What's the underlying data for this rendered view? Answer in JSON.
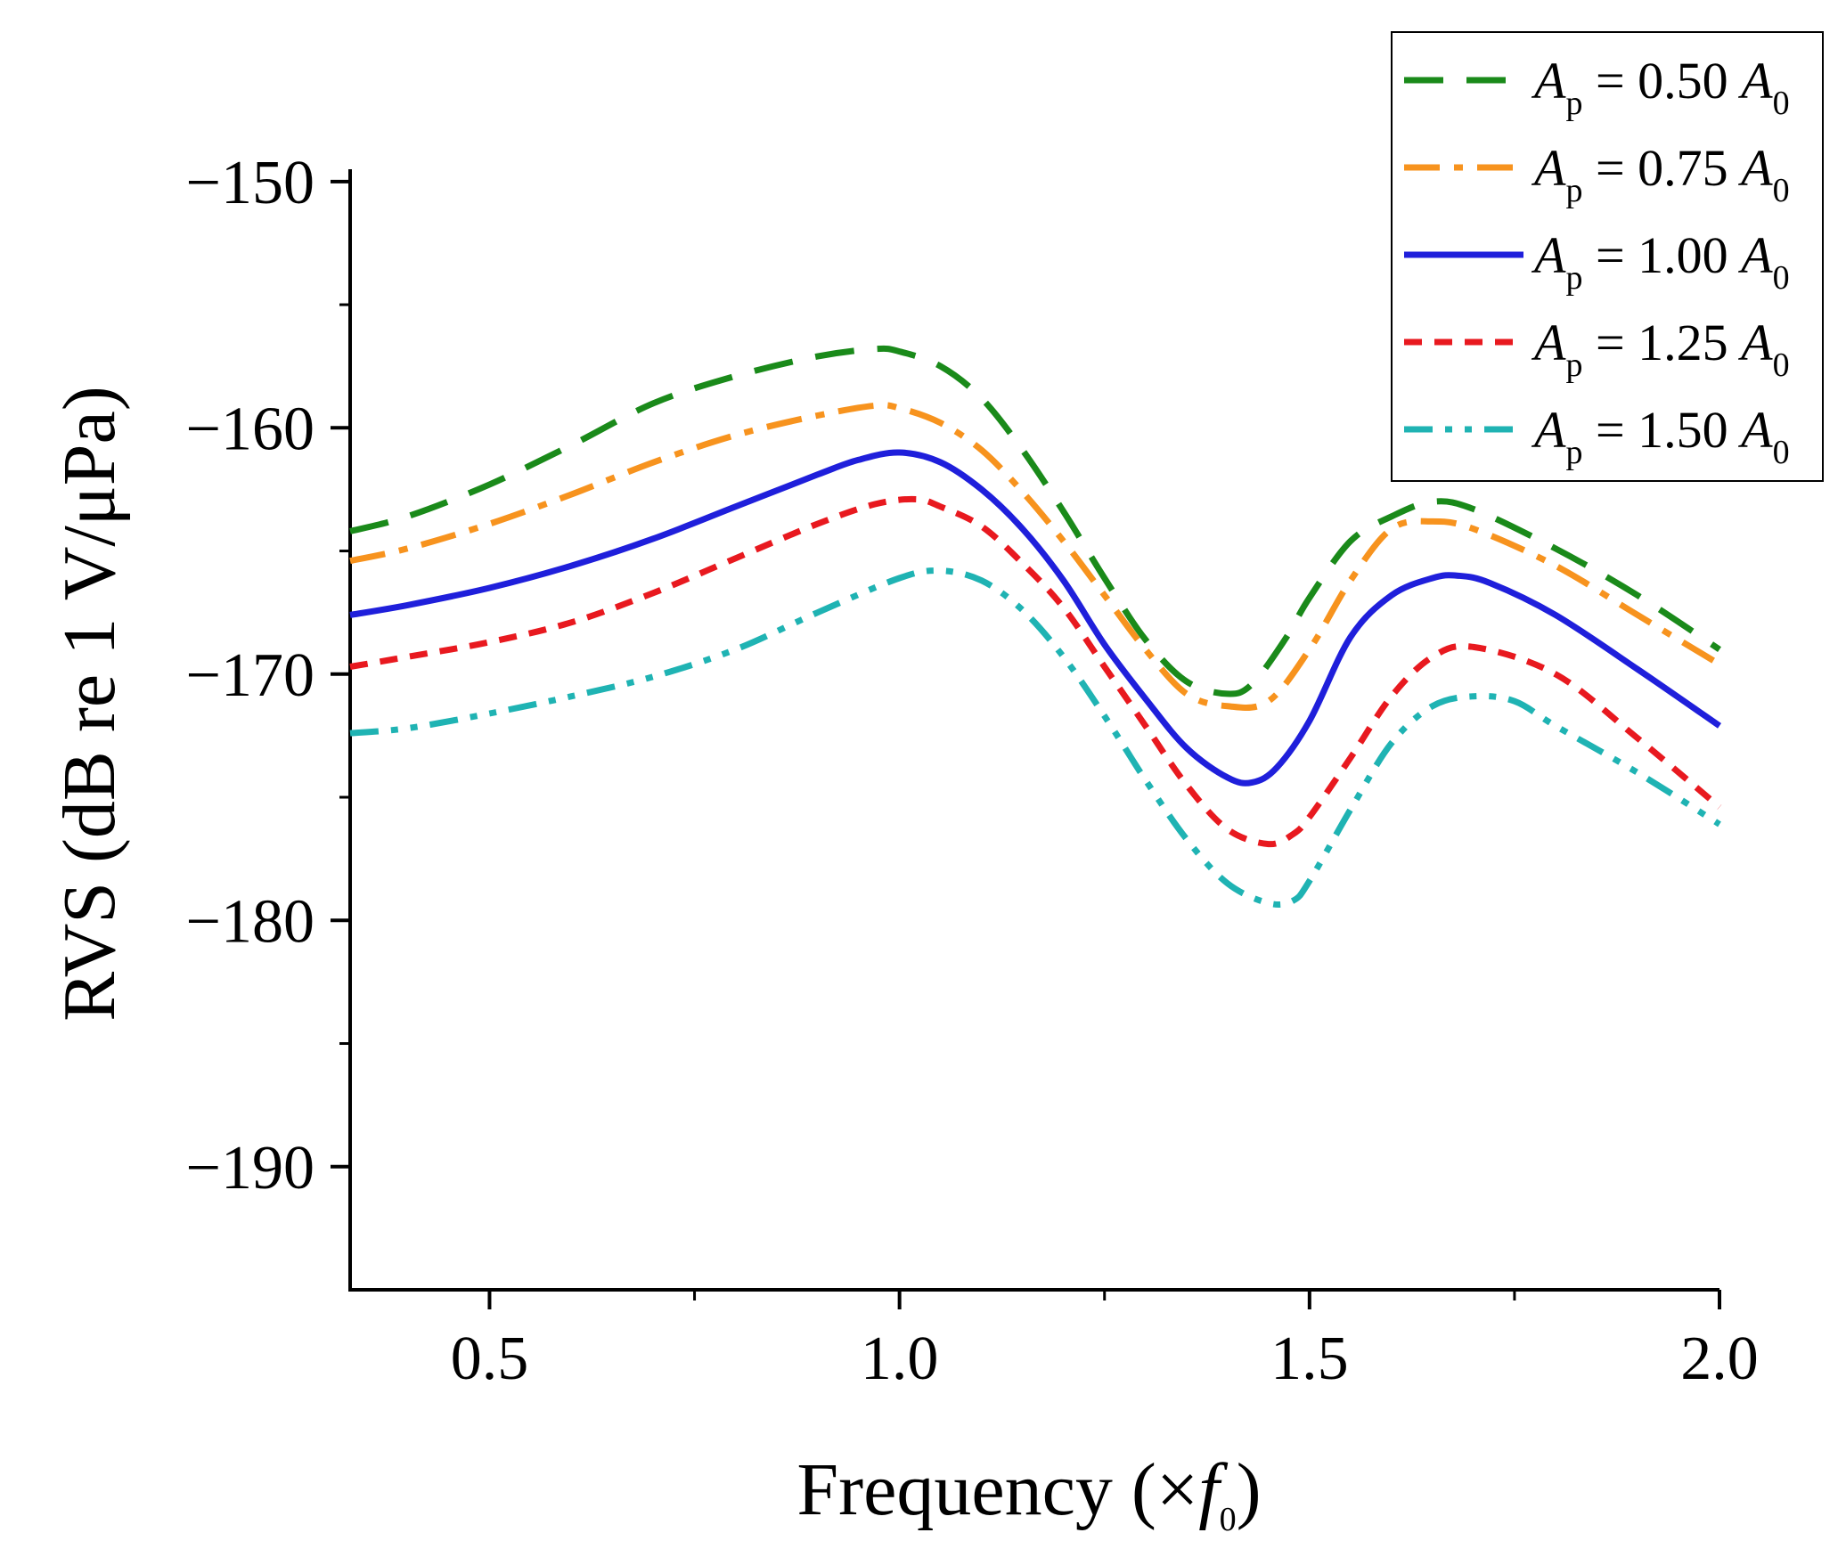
{
  "chart_data": {
    "type": "line",
    "xlabel_main": "Frequency (×",
    "xlabel_var": "f",
    "xlabel_sub": "0",
    "xlabel_close": ")",
    "ylabel": "RVS (dB re 1 V/μPa)",
    "xlim": [
      0.33,
      2.0
    ],
    "ylim": [
      -195,
      -149.5
    ],
    "xticks": [
      0.5,
      1.0,
      1.5,
      2.0
    ],
    "xtick_labels": [
      "0.5",
      "1.0",
      "1.5",
      "2.0"
    ],
    "xminor": [
      0.75,
      1.25,
      1.75
    ],
    "yticks": [
      -150,
      -160,
      -170,
      -180,
      -190
    ],
    "ytick_labels": [
      "−150",
      "−160",
      "−170",
      "−180",
      "−190"
    ],
    "yminor": [
      -155,
      -165,
      -175,
      -185
    ],
    "legend_position": "top-right",
    "series": [
      {
        "name": "A_p = 0.50 A_0",
        "legend": {
          "var": "A",
          "sub": "p",
          "eq": " = 0.50 ",
          "var2": "A",
          "sub2": "0"
        },
        "color": "#1a8a1a",
        "dash": "dash",
        "x": [
          0.33,
          0.4,
          0.5,
          0.6,
          0.7,
          0.8,
          0.9,
          0.97,
          1.0,
          1.05,
          1.1,
          1.15,
          1.2,
          1.25,
          1.3,
          1.35,
          1.4,
          1.43,
          1.47,
          1.5,
          1.55,
          1.6,
          1.65,
          1.7,
          1.8,
          1.9,
          2.0
        ],
        "y": [
          -164.2,
          -163.6,
          -162.3,
          -160.7,
          -159.0,
          -157.9,
          -157.1,
          -156.8,
          -156.9,
          -157.5,
          -158.8,
          -160.9,
          -163.4,
          -166.1,
          -168.6,
          -170.3,
          -170.8,
          -170.4,
          -168.6,
          -166.9,
          -164.6,
          -163.6,
          -163.0,
          -163.3,
          -164.9,
          -166.8,
          -169.0
        ]
      },
      {
        "name": "A_p = 0.75 A_0",
        "legend": {
          "var": "A",
          "sub": "p",
          "eq": " = 0.75 ",
          "var2": "A",
          "sub2": "0"
        },
        "color": "#f7931e",
        "dash": "dashdot",
        "x": [
          0.33,
          0.4,
          0.5,
          0.6,
          0.7,
          0.8,
          0.9,
          0.97,
          1.0,
          1.05,
          1.1,
          1.15,
          1.2,
          1.25,
          1.3,
          1.35,
          1.4,
          1.45,
          1.5,
          1.55,
          1.6,
          1.65,
          1.7,
          1.8,
          1.9,
          2.0
        ],
        "y": [
          -165.4,
          -164.9,
          -163.9,
          -162.7,
          -161.4,
          -160.3,
          -159.5,
          -159.1,
          -159.2,
          -159.8,
          -160.9,
          -162.6,
          -164.6,
          -166.8,
          -169.0,
          -170.8,
          -171.3,
          -171.1,
          -169.0,
          -166.2,
          -164.1,
          -163.8,
          -164.1,
          -165.6,
          -167.6,
          -169.6
        ]
      },
      {
        "name": "A_p = 1.00 A_0",
        "legend": {
          "var": "A",
          "sub": "p",
          "eq": " = 1.00 ",
          "var2": "A",
          "sub2": "0"
        },
        "color": "#1f1fdb",
        "dash": "solid",
        "x": [
          0.33,
          0.4,
          0.5,
          0.6,
          0.7,
          0.8,
          0.9,
          0.95,
          1.0,
          1.05,
          1.1,
          1.15,
          1.2,
          1.25,
          1.3,
          1.35,
          1.4,
          1.43,
          1.46,
          1.5,
          1.55,
          1.6,
          1.65,
          1.68,
          1.72,
          1.8,
          1.9,
          2.0
        ],
        "y": [
          -167.6,
          -167.2,
          -166.5,
          -165.6,
          -164.5,
          -163.2,
          -161.9,
          -161.3,
          -161.0,
          -161.4,
          -162.5,
          -164.1,
          -166.2,
          -168.8,
          -171.0,
          -173.0,
          -174.2,
          -174.4,
          -173.8,
          -171.9,
          -168.5,
          -166.8,
          -166.1,
          -166.0,
          -166.3,
          -167.6,
          -169.8,
          -172.1
        ]
      },
      {
        "name": "A_p = 1.25 A_0",
        "legend": {
          "var": "A",
          "sub": "p",
          "eq": " = 1.25 ",
          "var2": "A",
          "sub2": "0"
        },
        "color": "#e8191f",
        "dash": "shortdash",
        "x": [
          0.33,
          0.4,
          0.5,
          0.6,
          0.7,
          0.8,
          0.9,
          0.97,
          1.02,
          1.05,
          1.1,
          1.15,
          1.2,
          1.25,
          1.3,
          1.35,
          1.4,
          1.45,
          1.48,
          1.5,
          1.55,
          1.6,
          1.65,
          1.7,
          1.8,
          1.9,
          2.0
        ],
        "y": [
          -169.7,
          -169.3,
          -168.7,
          -167.9,
          -166.7,
          -165.3,
          -163.9,
          -163.1,
          -162.9,
          -163.2,
          -164.0,
          -165.5,
          -167.3,
          -169.7,
          -172.1,
          -174.5,
          -176.3,
          -176.9,
          -176.5,
          -175.8,
          -173.4,
          -170.9,
          -169.3,
          -168.9,
          -170.0,
          -172.6,
          -175.4
        ]
      },
      {
        "name": "A_p = 1.50 A_0",
        "legend": {
          "var": "A",
          "sub": "p",
          "eq": " = 1.50 ",
          "var2": "A",
          "sub2": "0"
        },
        "color": "#1fb3b3",
        "dash": "dashdotdot",
        "x": [
          0.33,
          0.4,
          0.5,
          0.6,
          0.7,
          0.8,
          0.9,
          1.0,
          1.05,
          1.1,
          1.15,
          1.2,
          1.25,
          1.3,
          1.35,
          1.4,
          1.45,
          1.48,
          1.5,
          1.55,
          1.6,
          1.65,
          1.7,
          1.75,
          1.8,
          1.9,
          2.0
        ],
        "y": [
          -172.4,
          -172.2,
          -171.6,
          -170.9,
          -170.1,
          -169.0,
          -167.5,
          -166.1,
          -165.8,
          -166.2,
          -167.4,
          -169.3,
          -171.7,
          -174.3,
          -176.7,
          -178.5,
          -179.3,
          -179.2,
          -178.4,
          -175.5,
          -172.8,
          -171.3,
          -170.9,
          -171.1,
          -172.1,
          -174.0,
          -176.1
        ]
      }
    ]
  }
}
